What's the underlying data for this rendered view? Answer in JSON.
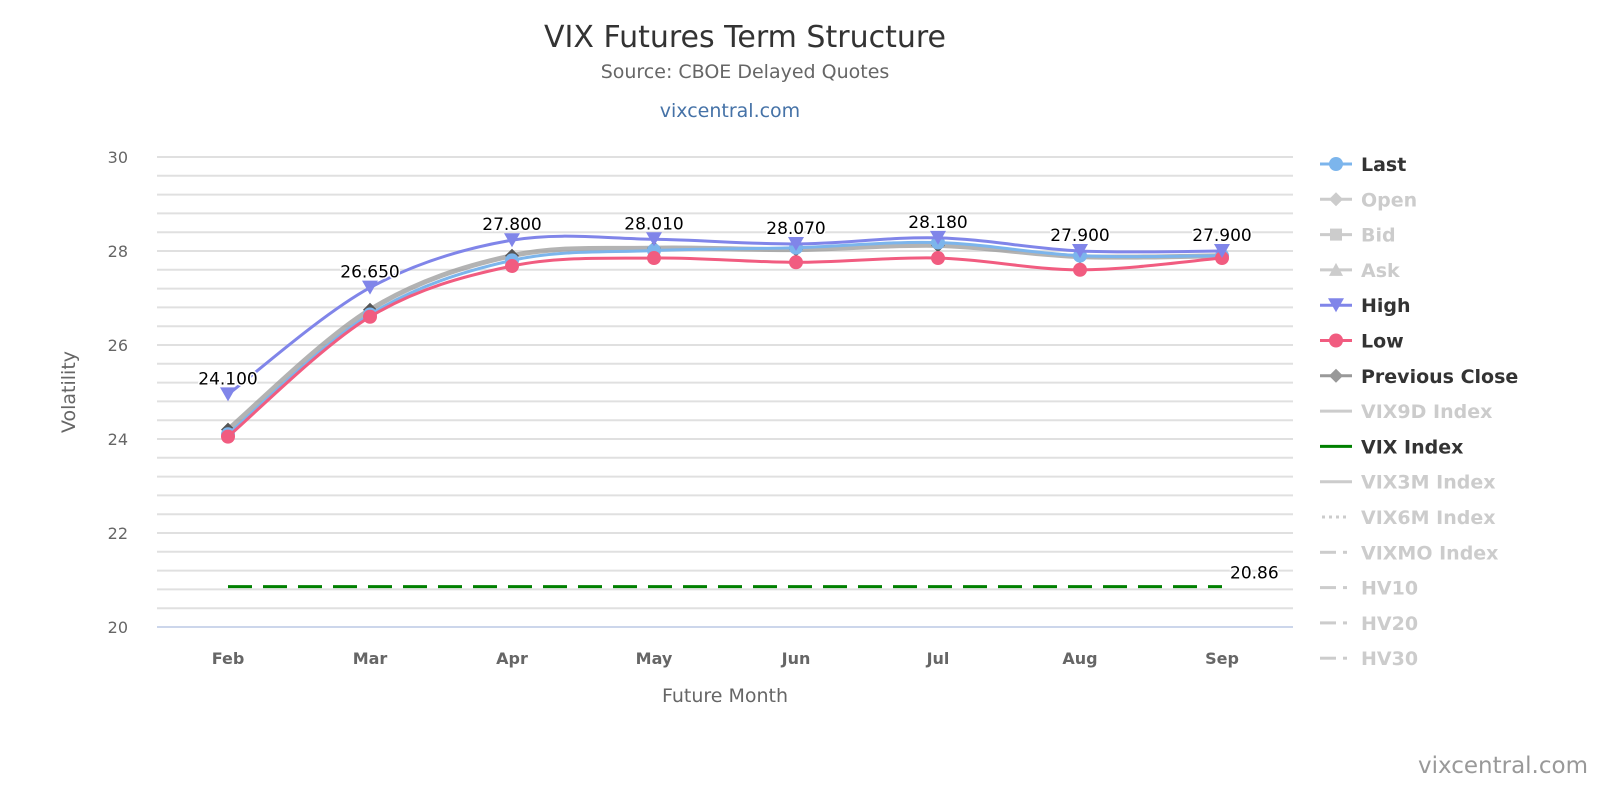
{
  "chart_data": {
    "type": "line",
    "title": "VIX Futures Term Structure",
    "subtitle": "Source: CBOE Delayed Quotes",
    "site_link": "vixcentral.com",
    "credit": "vixcentral.com",
    "xlabel": "Future Month",
    "ylabel": "Volatility",
    "ylim": [
      20,
      30
    ],
    "yticks": [
      "20",
      "22",
      "24",
      "26",
      "28",
      "30"
    ],
    "grid": true,
    "legend_position": "right",
    "categories": [
      "Feb",
      "Mar",
      "Apr",
      "May",
      "Jun",
      "Jul",
      "Aug",
      "Sep"
    ],
    "series": [
      {
        "name": "Last",
        "color": "#7cb5ec",
        "marker": "circle",
        "visible": true,
        "values": [
          24.1,
          26.65,
          27.8,
          28.01,
          28.07,
          28.18,
          27.9,
          27.9
        ],
        "labels": [
          "24.100",
          "26.650",
          "27.800",
          "28.010",
          "28.070",
          "28.180",
          "27.900",
          "27.900"
        ]
      },
      {
        "name": "Open",
        "color": "#cccccc",
        "marker": "diamond",
        "visible": false
      },
      {
        "name": "Bid",
        "color": "#cccccc",
        "marker": "square",
        "visible": false
      },
      {
        "name": "Ask",
        "color": "#cccccc",
        "marker": "triangle",
        "visible": false
      },
      {
        "name": "High",
        "color": "#8085e9",
        "marker": "triangle-down",
        "visible": true,
        "values": [
          24.95,
          27.22,
          28.23,
          28.25,
          28.15,
          28.28,
          28.0,
          28.0
        ]
      },
      {
        "name": "Low",
        "color": "#f15c80",
        "marker": "circle",
        "visible": true,
        "values": [
          24.05,
          26.6,
          27.68,
          27.85,
          27.76,
          27.85,
          27.6,
          27.85
        ]
      },
      {
        "name": "Previous Close",
        "color": "#999999",
        "marker": "diamond",
        "visible": true,
        "values": [
          24.2,
          26.75,
          27.9,
          28.06,
          28.03,
          28.12,
          27.88,
          27.9
        ]
      },
      {
        "name": "VIX9D Index",
        "color": "#cccccc",
        "marker": "line",
        "visible": false
      },
      {
        "name": "VIX Index",
        "color": "#008000",
        "marker": "dash",
        "visible": true,
        "constant": 20.86,
        "label": "20.86"
      },
      {
        "name": "VIX3M Index",
        "color": "#cccccc",
        "marker": "line",
        "visible": false
      },
      {
        "name": "VIX6M Index",
        "color": "#cccccc",
        "marker": "dot",
        "visible": false
      },
      {
        "name": "VIXMO Index",
        "color": "#cccccc",
        "marker": "dashdot",
        "visible": false
      },
      {
        "name": "HV10",
        "color": "#cccccc",
        "marker": "dashdot",
        "visible": false
      },
      {
        "name": "HV20",
        "color": "#cccccc",
        "marker": "dashdot",
        "visible": false
      },
      {
        "name": "HV30",
        "color": "#cccccc",
        "marker": "dashdot",
        "visible": false
      }
    ]
  }
}
